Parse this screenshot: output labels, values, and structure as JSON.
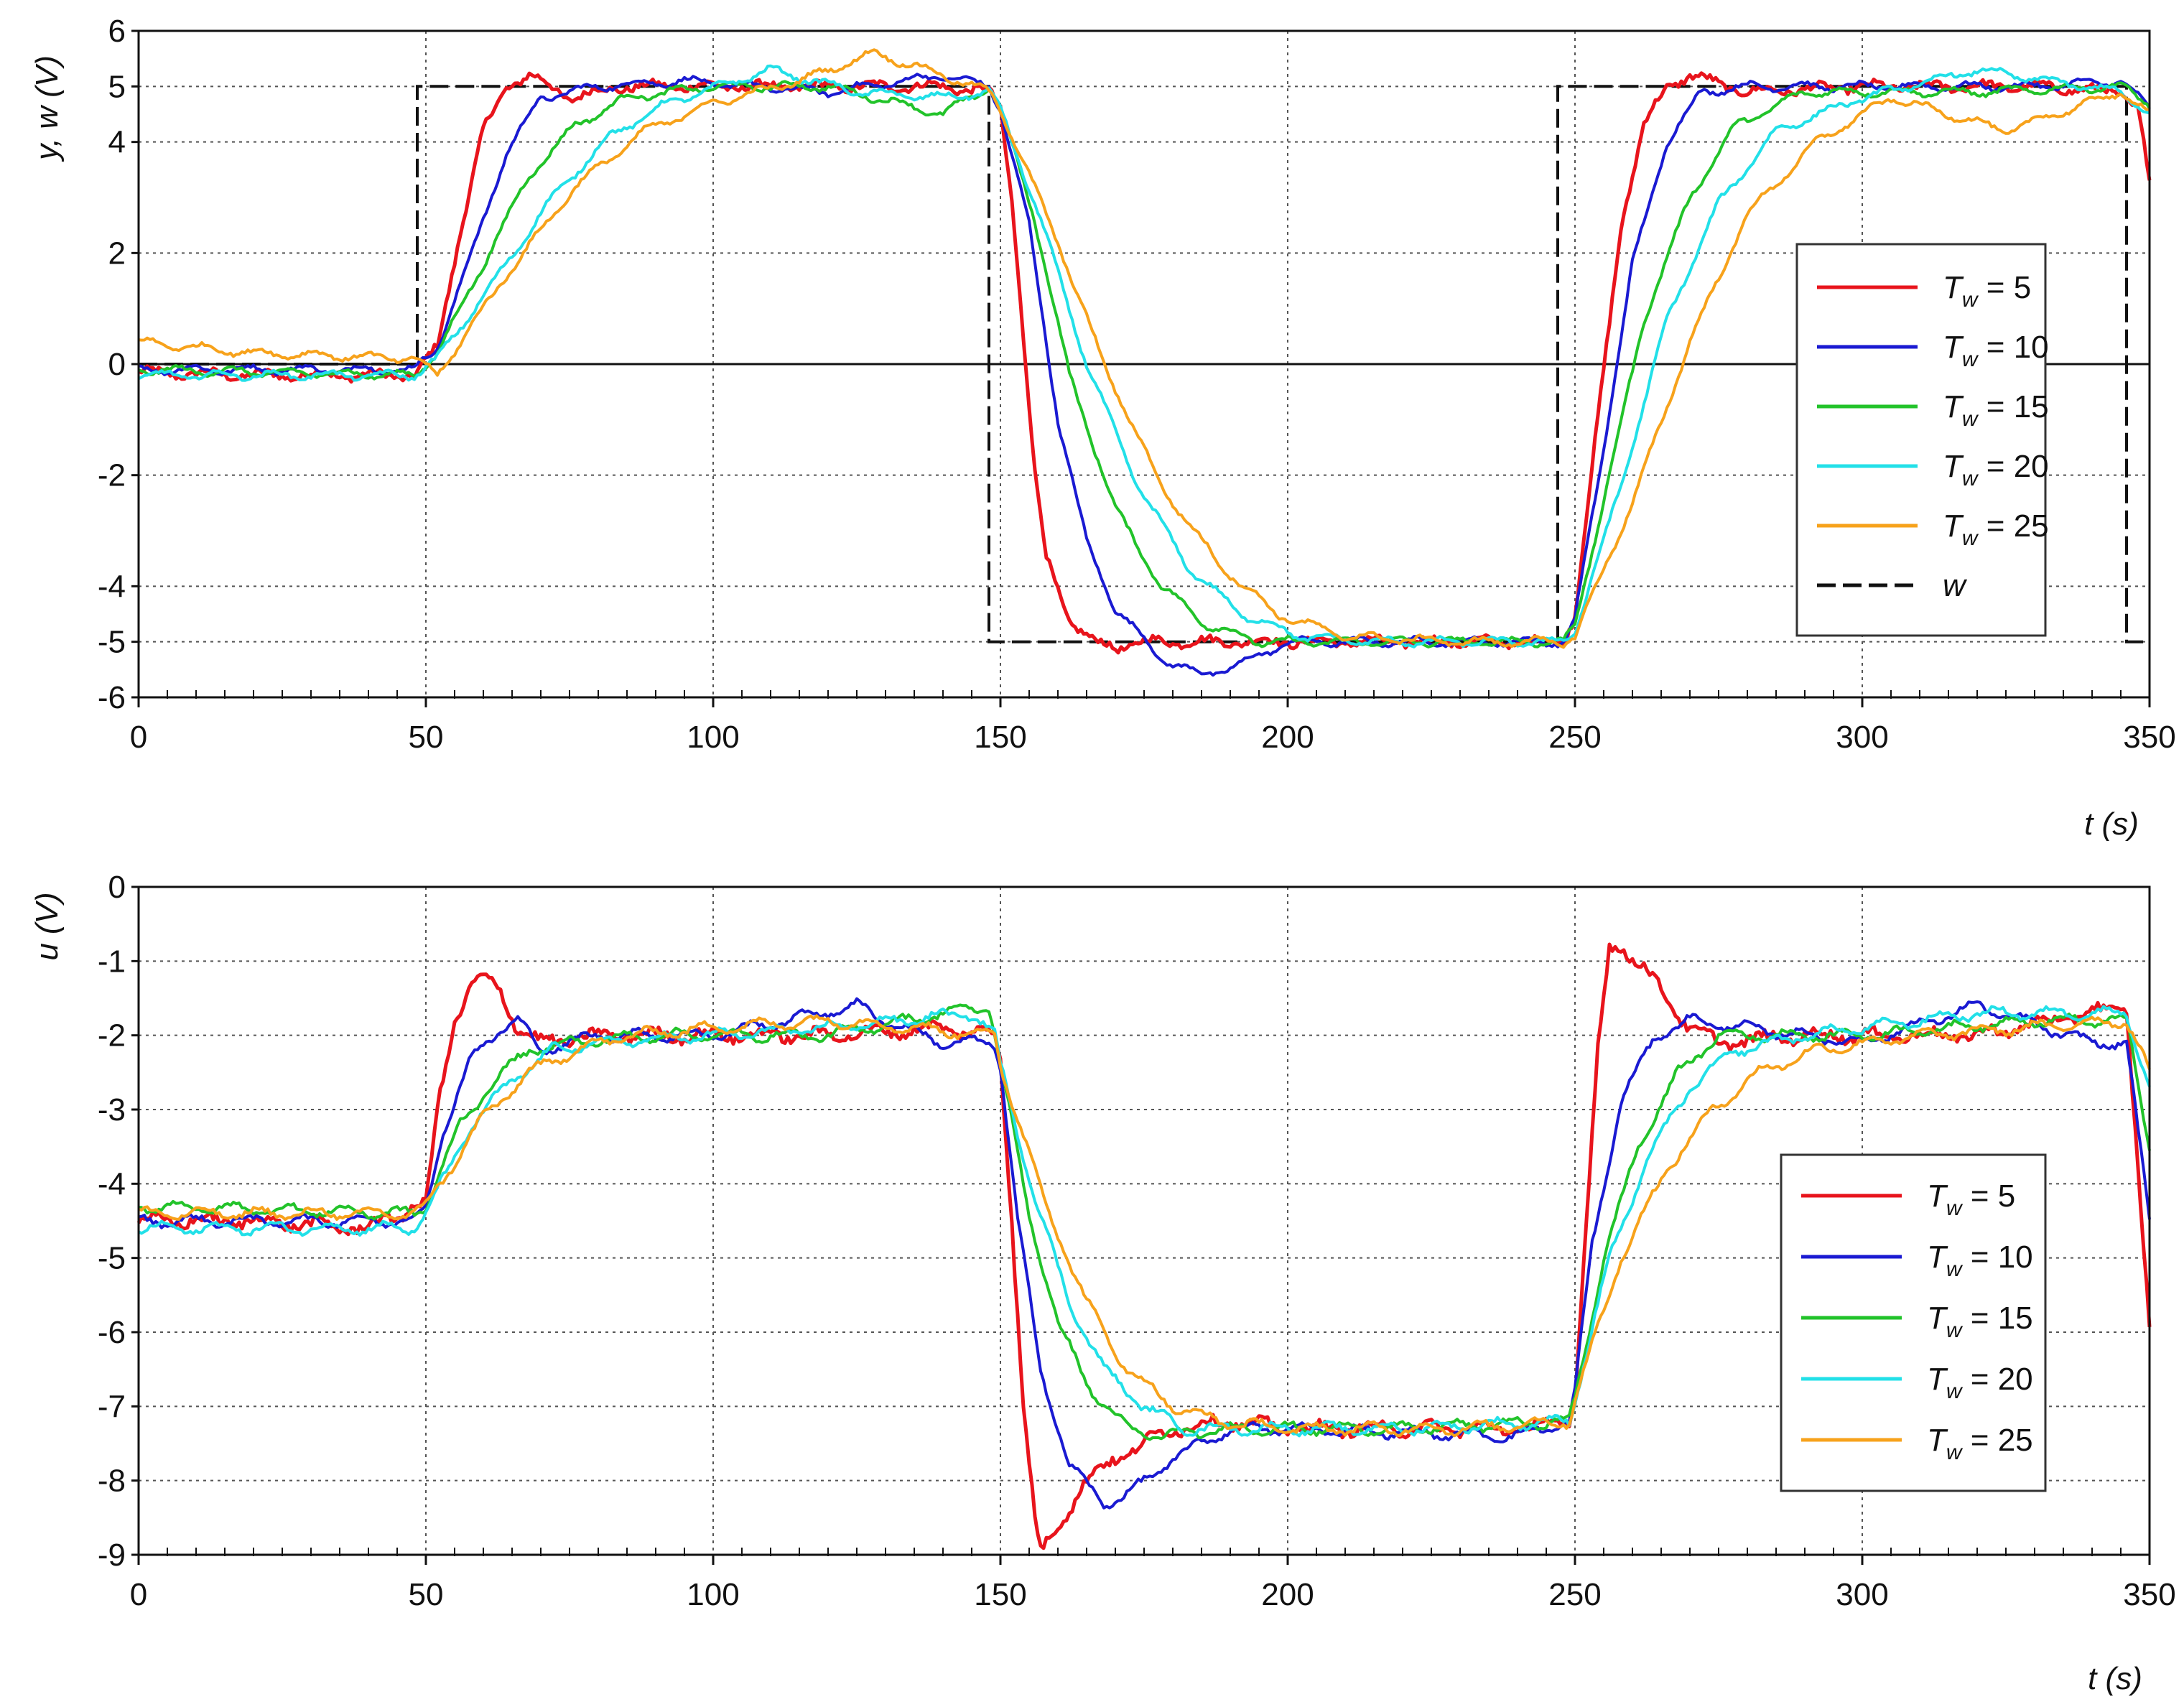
{
  "chart_data": [
    {
      "type": "line",
      "ylabel": "y, w (V)",
      "xlabel": "t (s)",
      "xlim": [
        0,
        350
      ],
      "ylim": [
        -6,
        6
      ],
      "xticks": [
        0,
        50,
        100,
        150,
        200,
        250,
        300,
        350
      ],
      "yticks": [
        -6,
        -5,
        -4,
        -2,
        0,
        2,
        4,
        5,
        6
      ],
      "grid": true,
      "legend_position": "right",
      "legend": [
        {
          "symbol": "T",
          "sub": "w",
          "text": " = 5",
          "color": "#e8141c"
        },
        {
          "symbol": "T",
          "sub": "w",
          "text": " = 10",
          "color": "#1a1ad2"
        },
        {
          "symbol": "T",
          "sub": "w",
          "text": " = 15",
          "color": "#22c32a"
        },
        {
          "symbol": "T",
          "sub": "w",
          "text": " = 20",
          "color": "#22e0e8"
        },
        {
          "symbol": "T",
          "sub": "w",
          "text": " = 25",
          "color": "#f7a21b"
        },
        {
          "symbol": "w",
          "sub": "",
          "text": "",
          "color": "#111111",
          "dashed": true
        }
      ],
      "reference": {
        "name": "w",
        "x": [
          0,
          48.5,
          48.5,
          148,
          148,
          247,
          247,
          346,
          346,
          350
        ],
        "y": [
          0,
          0,
          5,
          5,
          -5,
          -5,
          5,
          5,
          -5,
          -5
        ]
      },
      "series": [
        {
          "name": "Tw = 5",
          "color": "#e8141c",
          "step_times": [
            50,
            150,
            250
          ],
          "init": -0.15,
          "levels": [
            5,
            -5,
            5
          ],
          "x": [
            0,
            20,
            48,
            52,
            56,
            60,
            64,
            68,
            75,
            85,
            100,
            120,
            140,
            148,
            150,
            152,
            154,
            156,
            158,
            162,
            166,
            170,
            175,
            180,
            200,
            240,
            248,
            250,
            254,
            258,
            262,
            266,
            270,
            280,
            300,
            330,
            345,
            348,
            350
          ],
          "y": [
            -0.15,
            -0.2,
            -0.2,
            0.3,
            2.4,
            4.2,
            5.0,
            5.2,
            4.8,
            5.0,
            5.0,
            5.0,
            5.0,
            4.9,
            4.6,
            3.0,
            0.5,
            -2.0,
            -3.5,
            -4.6,
            -5.0,
            -5.1,
            -5.0,
            -5.0,
            -5.0,
            -5.0,
            -5.0,
            -4.5,
            -1.0,
            2.5,
            4.3,
            5.0,
            5.2,
            4.9,
            5.0,
            5.0,
            4.9,
            4.6,
            3.3
          ]
        },
        {
          "name": "Tw = 10",
          "color": "#1a1ad2",
          "step_times": [
            50,
            150,
            250
          ],
          "init": -0.1,
          "levels": [
            5,
            -5,
            5
          ],
          "x": [
            0,
            48,
            52,
            58,
            64,
            70,
            80,
            95,
            120,
            140,
            148,
            150,
            155,
            160,
            165,
            170,
            178,
            185,
            192,
            200,
            240,
            248,
            250,
            255,
            260,
            266,
            272,
            280,
            300,
            330,
            345,
            350
          ],
          "y": [
            -0.1,
            -0.1,
            0.3,
            2.0,
            3.8,
            4.8,
            5.0,
            5.1,
            4.9,
            5.2,
            5.0,
            4.6,
            2.5,
            -1.0,
            -3.2,
            -4.4,
            -5.3,
            -5.6,
            -5.4,
            -5.0,
            -5.0,
            -5.0,
            -4.6,
            -1.5,
            1.8,
            4.0,
            4.9,
            5.0,
            5.0,
            5.0,
            5.1,
            4.6
          ]
        },
        {
          "name": "Tw = 15",
          "color": "#22c32a",
          "step_times": [
            50,
            150,
            250
          ],
          "init": -0.1,
          "levels": [
            5,
            -5,
            5
          ],
          "x": [
            0,
            48,
            52,
            60,
            68,
            76,
            85,
            100,
            120,
            140,
            148,
            150,
            156,
            162,
            170,
            178,
            186,
            195,
            205,
            240,
            248,
            250,
            256,
            262,
            270,
            278,
            290,
            320,
            345,
            350
          ],
          "y": [
            -0.1,
            -0.2,
            0.2,
            1.8,
            3.4,
            4.3,
            4.8,
            5.0,
            5.0,
            4.5,
            5.0,
            4.6,
            2.6,
            -0.2,
            -2.6,
            -4.0,
            -4.7,
            -5.0,
            -5.0,
            -5.0,
            -5.0,
            -4.7,
            -2.0,
            0.8,
            3.0,
            4.3,
            4.9,
            4.9,
            5.0,
            4.7
          ]
        },
        {
          "name": "Tw = 20",
          "color": "#22e0e8",
          "step_times": [
            50,
            150,
            250
          ],
          "init": -0.2,
          "levels": [
            5,
            -5,
            5
          ],
          "x": [
            0,
            48,
            52,
            62,
            72,
            82,
            92,
            110,
            125,
            140,
            148,
            150,
            158,
            165,
            174,
            183,
            192,
            202,
            215,
            240,
            248,
            250,
            258,
            266,
            275,
            285,
            300,
            320,
            345,
            350
          ],
          "y": [
            -0.2,
            -0.2,
            0.1,
            1.5,
            3.0,
            4.1,
            4.7,
            5.3,
            4.9,
            4.8,
            4.9,
            4.6,
            2.3,
            0.0,
            -2.2,
            -3.7,
            -4.5,
            -4.9,
            -5.0,
            -5.0,
            -5.0,
            -4.8,
            -2.2,
            0.8,
            2.9,
            4.2,
            4.8,
            5.3,
            4.9,
            4.5
          ]
        },
        {
          "name": "Tw = 25",
          "color": "#f7a21b",
          "step_times": [
            50,
            150,
            250
          ],
          "init": 0.4,
          "levels": [
            5,
            -5,
            5
          ],
          "x": [
            0,
            20,
            48,
            52,
            64,
            76,
            88,
            100,
            115,
            128,
            140,
            148,
            150,
            160,
            168,
            178,
            188,
            198,
            210,
            230,
            248,
            250,
            260,
            270,
            280,
            292,
            305,
            325,
            345,
            350
          ],
          "y": [
            0.4,
            0.2,
            0.1,
            -0.2,
            1.6,
            3.2,
            4.2,
            4.7,
            5.1,
            5.6,
            5.2,
            4.9,
            4.6,
            2.2,
            0.0,
            -2.2,
            -3.6,
            -4.5,
            -4.9,
            -5.0,
            -5.0,
            -4.9,
            -2.5,
            0.4,
            2.7,
            4.0,
            4.8,
            4.2,
            4.9,
            4.5
          ]
        }
      ]
    },
    {
      "type": "line",
      "ylabel": "u (V)",
      "xlabel": "t (s)",
      "xlim": [
        0,
        350
      ],
      "ylim": [
        -9,
        0
      ],
      "xticks": [
        0,
        50,
        100,
        150,
        200,
        250,
        300,
        350
      ],
      "yticks": [
        -9,
        -8,
        -7,
        -6,
        -5,
        -4,
        -3,
        -2,
        -1,
        0
      ],
      "grid": true,
      "legend_position": "right",
      "legend": [
        {
          "symbol": "T",
          "sub": "w",
          "text": " = 5",
          "color": "#e8141c"
        },
        {
          "symbol": "T",
          "sub": "w",
          "text": " = 10",
          "color": "#1a1ad2"
        },
        {
          "symbol": "T",
          "sub": "w",
          "text": " = 15",
          "color": "#22c32a"
        },
        {
          "symbol": "T",
          "sub": "w",
          "text": " = 20",
          "color": "#22e0e8"
        },
        {
          "symbol": "T",
          "sub": "w",
          "text": " = 25",
          "color": "#f7a21b"
        }
      ],
      "series": [
        {
          "name": "Tw = 5",
          "color": "#e8141c",
          "x": [
            0,
            20,
            40,
            48,
            50,
            52,
            55,
            58,
            60,
            63,
            66,
            70,
            80,
            100,
            120,
            140,
            149,
            150,
            152,
            154,
            156,
            157,
            160,
            165,
            170,
            180,
            190,
            200,
            240,
            249,
            250,
            252,
            254,
            256,
            258,
            262,
            266,
            270,
            275,
            290,
            320,
            346,
            348,
            350
          ],
          "y": [
            -4.5,
            -4.5,
            -4.6,
            -4.3,
            -4.3,
            -3.0,
            -1.8,
            -1.3,
            -1.25,
            -1.4,
            -1.9,
            -2.1,
            -2.0,
            -2.0,
            -2.0,
            -1.9,
            -2.0,
            -2.3,
            -4.5,
            -7.0,
            -8.5,
            -9.0,
            -8.6,
            -8.0,
            -7.7,
            -7.3,
            -7.2,
            -7.3,
            -7.3,
            -7.2,
            -6.9,
            -4.5,
            -2.2,
            -0.8,
            -0.8,
            -1.1,
            -1.5,
            -1.9,
            -2.1,
            -2.0,
            -2.0,
            -1.6,
            -3.8,
            -6.0
          ]
        },
        {
          "name": "Tw = 10",
          "color": "#1a1ad2",
          "x": [
            0,
            48,
            50,
            53,
            58,
            63,
            66,
            70,
            80,
            100,
            125,
            130,
            140,
            149,
            150,
            153,
            157,
            162,
            168,
            172,
            180,
            190,
            200,
            240,
            249,
            250,
            253,
            258,
            264,
            270,
            280,
            300,
            320,
            340,
            346,
            350
          ],
          "y": [
            -4.5,
            -4.5,
            -4.3,
            -3.3,
            -2.3,
            -1.9,
            -1.8,
            -2.2,
            -2.0,
            -2.0,
            -1.6,
            -1.8,
            -2.1,
            -2.1,
            -2.4,
            -4.5,
            -6.5,
            -7.8,
            -8.3,
            -8.2,
            -7.7,
            -7.3,
            -7.3,
            -7.4,
            -7.2,
            -6.8,
            -4.8,
            -2.9,
            -2.0,
            -1.8,
            -1.9,
            -2.1,
            -1.6,
            -2.1,
            -2.1,
            -4.5
          ]
        },
        {
          "name": "Tw = 15",
          "color": "#22c32a",
          "x": [
            0,
            48,
            50,
            56,
            62,
            68,
            75,
            90,
            120,
            140,
            148,
            150,
            155,
            160,
            166,
            172,
            178,
            190,
            220,
            249,
            250,
            255,
            261,
            268,
            275,
            285,
            300,
            330,
            346,
            350
          ],
          "y": [
            -4.3,
            -4.4,
            -4.3,
            -3.2,
            -2.6,
            -2.2,
            -2.1,
            -2.0,
            -2.0,
            -1.7,
            -1.6,
            -2.4,
            -4.4,
            -5.9,
            -6.8,
            -7.3,
            -7.4,
            -7.3,
            -7.3,
            -7.2,
            -6.9,
            -5.0,
            -3.5,
            -2.5,
            -2.0,
            -2.0,
            -2.0,
            -1.8,
            -1.8,
            -3.5
          ]
        },
        {
          "name": "Tw = 20",
          "color": "#22e0e8",
          "x": [
            0,
            48,
            50,
            58,
            65,
            72,
            80,
            100,
            120,
            145,
            149,
            150,
            156,
            162,
            168,
            175,
            182,
            190,
            220,
            249,
            250,
            256,
            263,
            270,
            278,
            290,
            320,
            346,
            350
          ],
          "y": [
            -4.6,
            -4.6,
            -4.4,
            -3.2,
            -2.6,
            -2.2,
            -2.1,
            -2.0,
            -1.9,
            -1.7,
            -2.0,
            -2.4,
            -4.2,
            -5.6,
            -6.5,
            -7.0,
            -7.3,
            -7.3,
            -7.3,
            -7.2,
            -6.9,
            -5.0,
            -3.6,
            -2.7,
            -2.2,
            -2.0,
            -1.7,
            -1.7,
            -2.7
          ]
        },
        {
          "name": "Tw = 25",
          "color": "#f7a21b",
          "x": [
            0,
            48,
            50,
            60,
            68,
            76,
            85,
            100,
            120,
            149,
            150,
            158,
            165,
            172,
            180,
            188,
            200,
            230,
            249,
            250,
            258,
            266,
            274,
            282,
            292,
            310,
            346,
            350
          ],
          "y": [
            -4.4,
            -4.4,
            -4.3,
            -3.1,
            -2.5,
            -2.2,
            -2.0,
            -1.9,
            -1.8,
            -2.0,
            -2.4,
            -4.3,
            -5.6,
            -6.5,
            -7.0,
            -7.2,
            -7.3,
            -7.3,
            -7.2,
            -6.9,
            -5.0,
            -3.8,
            -3.0,
            -2.5,
            -2.2,
            -2.0,
            -1.8,
            -2.5
          ]
        }
      ]
    }
  ]
}
